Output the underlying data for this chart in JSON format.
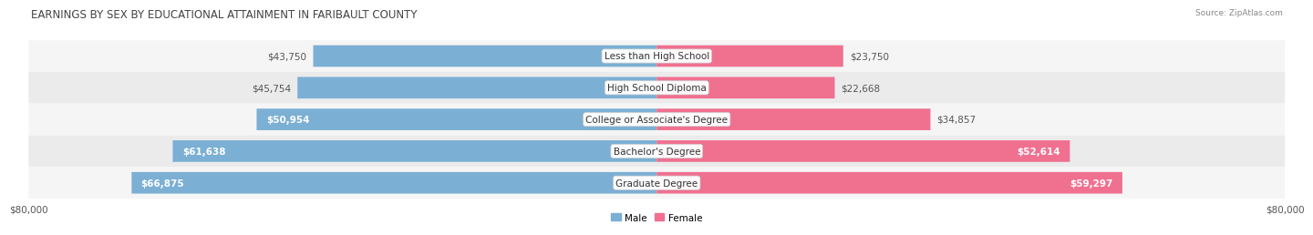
{
  "title": "EARNINGS BY SEX BY EDUCATIONAL ATTAINMENT IN FARIBAULT COUNTY",
  "source": "Source: ZipAtlas.com",
  "categories": [
    "Less than High School",
    "High School Diploma",
    "College or Associate's Degree",
    "Bachelor's Degree",
    "Graduate Degree"
  ],
  "male_values": [
    43750,
    45754,
    50954,
    61638,
    66875
  ],
  "female_values": [
    23750,
    22668,
    34857,
    52614,
    59297
  ],
  "male_labels": [
    "$43,750",
    "$45,754",
    "$50,954",
    "$61,638",
    "$66,875"
  ],
  "female_labels": [
    "$23,750",
    "$22,668",
    "$34,857",
    "$52,614",
    "$59,297"
  ],
  "male_color_light": "#a8c8e8",
  "male_color": "#7bafd4",
  "female_color_light": "#f9b8c8",
  "female_color": "#f07090",
  "row_bg_even": "#f5f5f5",
  "row_bg_odd": "#ebebeb",
  "max_value": 80000,
  "x_label_left": "$80,000",
  "x_label_right": "$80,000",
  "title_fontsize": 8.5,
  "label_fontsize": 7.5,
  "axis_fontsize": 7.5,
  "legend_fontsize": 7.5,
  "background_color": "#ffffff",
  "male_inside_threshold": 46000,
  "female_inside_threshold": 40000
}
